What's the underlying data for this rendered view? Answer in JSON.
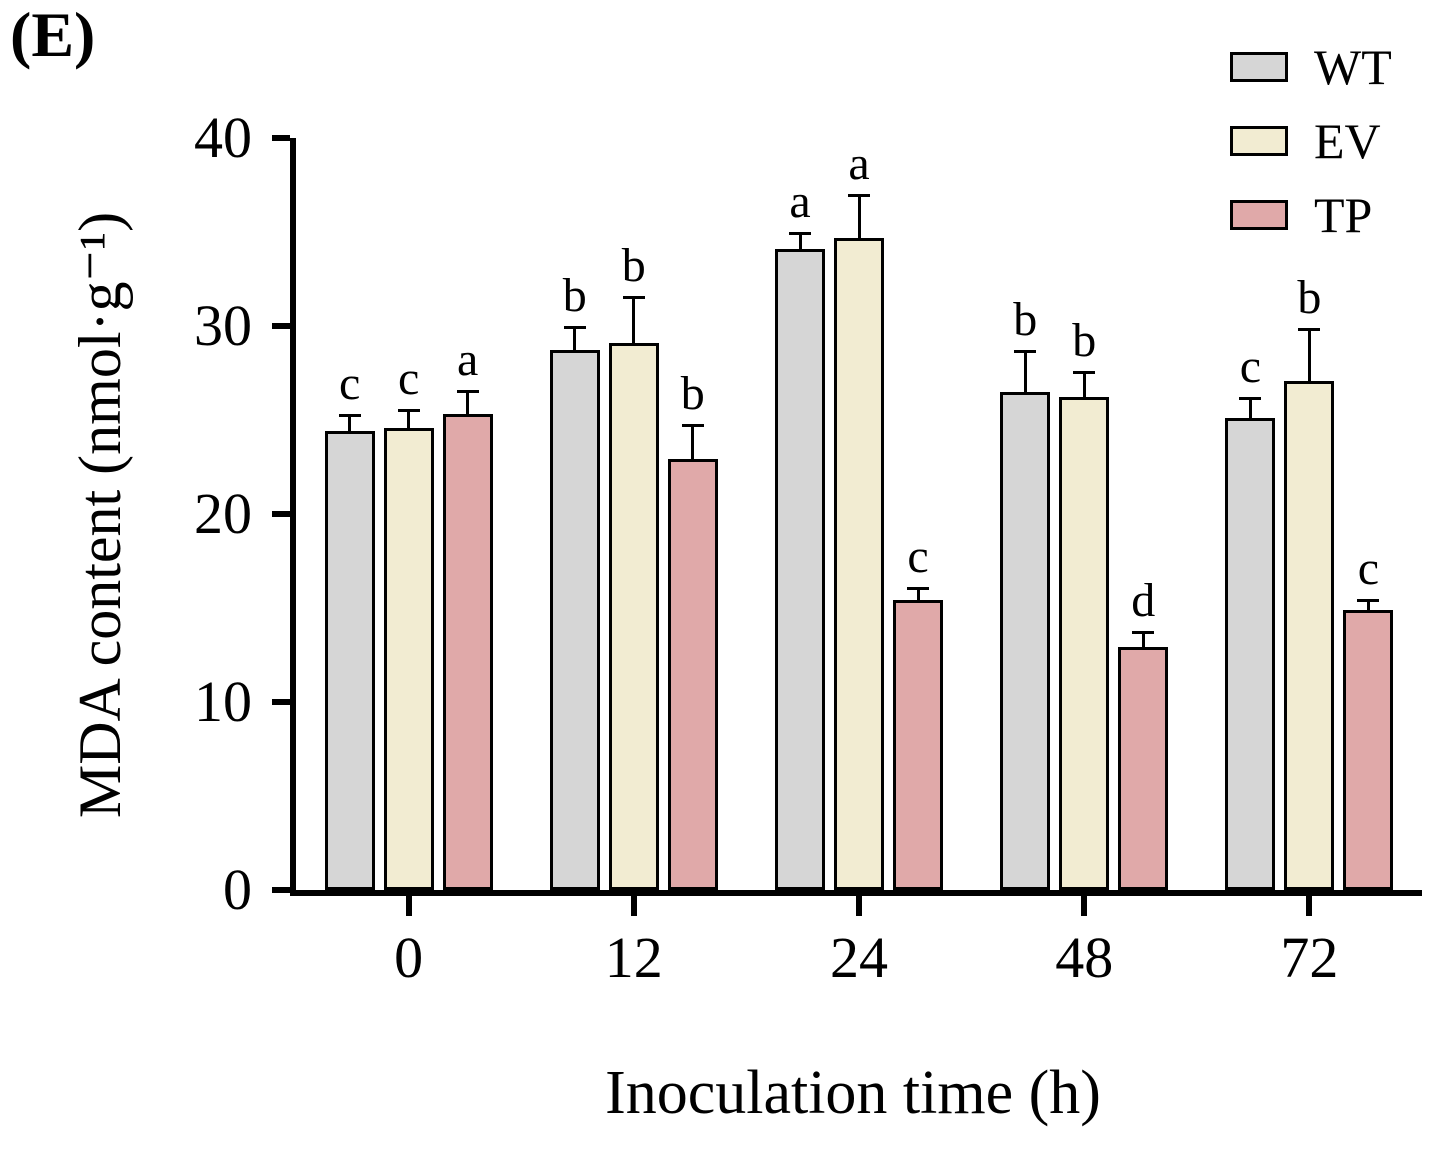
{
  "panel_label": "(E)",
  "chart_data": {
    "type": "bar",
    "title": "",
    "xlabel": "Inoculation time (h)",
    "ylabel": "MDA content (nmol·g⁻¹)",
    "ylim": [
      0,
      40
    ],
    "yticks": [
      0,
      10,
      20,
      30,
      40
    ],
    "categories": [
      "0",
      "12",
      "24",
      "48",
      "72"
    ],
    "grid": false,
    "legend_position": "top-right",
    "bar_border_color": "#000000",
    "series": [
      {
        "name": "WT",
        "color": "#d6d6d6",
        "values": [
          24.4,
          28.7,
          34.1,
          26.5,
          25.1
        ],
        "errors": [
          0.9,
          1.3,
          0.9,
          2.2,
          1.1
        ],
        "letters": [
          "c",
          "b",
          "a",
          "b",
          "c"
        ]
      },
      {
        "name": "EV",
        "color": "#f2ecd2",
        "values": [
          24.6,
          29.1,
          34.7,
          26.2,
          27.1
        ],
        "errors": [
          1.0,
          2.5,
          2.3,
          1.4,
          2.8
        ],
        "letters": [
          "c",
          "b",
          "a",
          "b",
          "b"
        ]
      },
      {
        "name": "TP",
        "color": "#e0a9a9",
        "values": [
          25.3,
          22.9,
          15.4,
          12.9,
          14.9
        ],
        "errors": [
          1.3,
          1.9,
          0.7,
          0.9,
          0.6
        ],
        "letters": [
          "a",
          "b",
          "c",
          "d",
          "c"
        ]
      }
    ]
  }
}
